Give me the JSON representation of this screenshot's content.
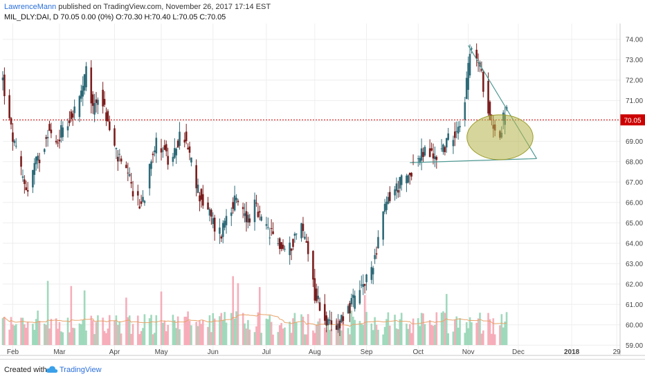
{
  "header": {
    "author": "LawrenceMann",
    "published": " published on TradingView.com, November 26, 2017 17:14 EST",
    "symbol_line": "MIL_DLY:DAI, D  70.05 0.00 (0%) O:70.30 H:70.40 L:70.05 C:70.05"
  },
  "footer": {
    "created_with": "Created with",
    "brand": "TradingView"
  },
  "colors": {
    "up": "#2e6a78",
    "down": "#7b1c1c",
    "vol_up": "#8fd2b0",
    "vol_down": "#f4a0ae",
    "grid": "#eeeeee",
    "last_price": "#cc0000",
    "trendline": "#4f9a94",
    "ma": "#e8a36a",
    "highlight": "#b5b54a"
  },
  "icons": {
    "logo": "tradingview-cloud-icon"
  },
  "chart_data": {
    "type": "candlestick",
    "last_price": 70.05,
    "last_price_label": "70.05",
    "ylim": [
      58.5,
      74.3
    ],
    "y_ticks": [
      "74.00",
      "73.00",
      "72.00",
      "71.00",
      "70.00",
      "69.00",
      "68.00",
      "67.00",
      "66.00",
      "65.00",
      "64.00",
      "63.00",
      "62.00",
      "61.00",
      "60.00",
      "59.00"
    ],
    "x_range": [
      "2017-01-26",
      "2018-01-31"
    ],
    "x_ticks": [
      {
        "label": "Feb",
        "date": "2017-02-01"
      },
      {
        "label": "Mar",
        "date": "2017-03-01"
      },
      {
        "label": "Apr",
        "date": "2017-04-03"
      },
      {
        "label": "May",
        "date": "2017-05-01"
      },
      {
        "label": "Jun",
        "date": "2017-06-01"
      },
      {
        "label": "Jul",
        "date": "2017-07-03"
      },
      {
        "label": "Aug",
        "date": "2017-08-01"
      },
      {
        "label": "Sep",
        "date": "2017-09-01"
      },
      {
        "label": "Oct",
        "date": "2017-10-02"
      },
      {
        "label": "Nov",
        "date": "2017-11-01"
      },
      {
        "label": "Dec",
        "date": "2017-12-01"
      },
      {
        "label": "2018",
        "date": "2018-01-02"
      },
      {
        "label": "29",
        "date": "2018-01-29"
      }
    ],
    "price_path": [
      [
        "2017-01-26",
        72.0
      ],
      [
        "2017-01-30",
        69.9
      ],
      [
        "2017-02-03",
        68.4
      ],
      [
        "2017-02-07",
        67.2
      ],
      [
        "2017-02-10",
        66.6
      ],
      [
        "2017-02-14",
        67.8
      ],
      [
        "2017-02-18",
        68.3
      ],
      [
        "2017-02-22",
        69.6
      ],
      [
        "2017-02-27",
        68.8
      ],
      [
        "2017-03-03",
        69.8
      ],
      [
        "2017-03-08",
        70.2
      ],
      [
        "2017-03-13",
        71.0
      ],
      [
        "2017-03-17",
        72.3
      ],
      [
        "2017-03-21",
        70.6
      ],
      [
        "2017-03-25",
        71.5
      ],
      [
        "2017-03-29",
        70.2
      ],
      [
        "2017-04-02",
        68.9
      ],
      [
        "2017-04-06",
        68.0
      ],
      [
        "2017-04-10",
        67.4
      ],
      [
        "2017-04-14",
        66.6
      ],
      [
        "2017-04-18",
        65.8
      ],
      [
        "2017-04-21",
        66.4
      ],
      [
        "2017-04-25",
        68.4
      ],
      [
        "2017-04-29",
        69.0
      ],
      [
        "2017-05-03",
        68.6
      ],
      [
        "2017-05-07",
        67.4
      ],
      [
        "2017-05-10",
        68.8
      ],
      [
        "2017-05-14",
        69.5
      ],
      [
        "2017-05-18",
        68.2
      ],
      [
        "2017-05-22",
        66.8
      ],
      [
        "2017-05-26",
        66.0
      ],
      [
        "2017-05-30",
        65.4
      ],
      [
        "2017-06-02",
        64.8
      ],
      [
        "2017-06-06",
        64.5
      ],
      [
        "2017-06-10",
        65.8
      ],
      [
        "2017-06-14",
        66.0
      ],
      [
        "2017-06-18",
        65.7
      ],
      [
        "2017-06-22",
        65.2
      ],
      [
        "2017-06-26",
        65.8
      ],
      [
        "2017-06-30",
        65.0
      ],
      [
        "2017-07-04",
        64.6
      ],
      [
        "2017-07-08",
        64.2
      ],
      [
        "2017-07-12",
        63.8
      ],
      [
        "2017-07-16",
        63.5
      ],
      [
        "2017-07-20",
        64.4
      ],
      [
        "2017-07-24",
        64.8
      ],
      [
        "2017-07-28",
        63.8
      ],
      [
        "2017-08-01",
        61.5
      ],
      [
        "2017-08-05",
        60.8
      ],
      [
        "2017-08-09",
        60.0
      ],
      [
        "2017-08-13",
        59.6
      ],
      [
        "2017-08-17",
        60.4
      ],
      [
        "2017-08-21",
        60.8
      ],
      [
        "2017-08-25",
        61.2
      ],
      [
        "2017-08-29",
        61.8
      ],
      [
        "2017-09-02",
        62.2
      ],
      [
        "2017-09-06",
        63.4
      ],
      [
        "2017-09-10",
        65.0
      ],
      [
        "2017-09-14",
        66.2
      ],
      [
        "2017-09-18",
        66.6
      ],
      [
        "2017-09-22",
        67.0
      ],
      [
        "2017-09-26",
        67.2
      ],
      [
        "2017-09-29",
        67.9
      ],
      [
        "2017-10-03",
        68.2
      ],
      [
        "2017-10-07",
        68.6
      ],
      [
        "2017-10-11",
        68.2
      ],
      [
        "2017-10-15",
        68.5
      ],
      [
        "2017-10-19",
        68.9
      ],
      [
        "2017-10-23",
        69.4
      ],
      [
        "2017-10-27",
        70.0
      ],
      [
        "2017-10-30",
        71.2
      ],
      [
        "2017-11-02",
        73.2
      ],
      [
        "2017-11-05",
        73.5
      ],
      [
        "2017-11-08",
        72.6
      ],
      [
        "2017-11-11",
        71.4
      ],
      [
        "2017-11-14",
        70.4
      ],
      [
        "2017-11-17",
        69.6
      ],
      [
        "2017-11-20",
        69.2
      ],
      [
        "2017-11-23",
        70.6
      ],
      [
        "2017-11-26",
        70.05
      ]
    ],
    "annotations": {
      "trendline_upper": {
        "from": [
          "2017-11-01",
          73.7
        ],
        "to": [
          "2017-12-12",
          68.15
        ]
      },
      "trendline_lower": {
        "from": [
          "2017-09-27",
          67.95
        ],
        "to": [
          "2017-12-12",
          68.15
        ]
      },
      "highlight_ellipse": {
        "center": [
          "2017-11-20",
          69.2
        ],
        "rx_days": 6,
        "ry": 1.1
      }
    }
  }
}
